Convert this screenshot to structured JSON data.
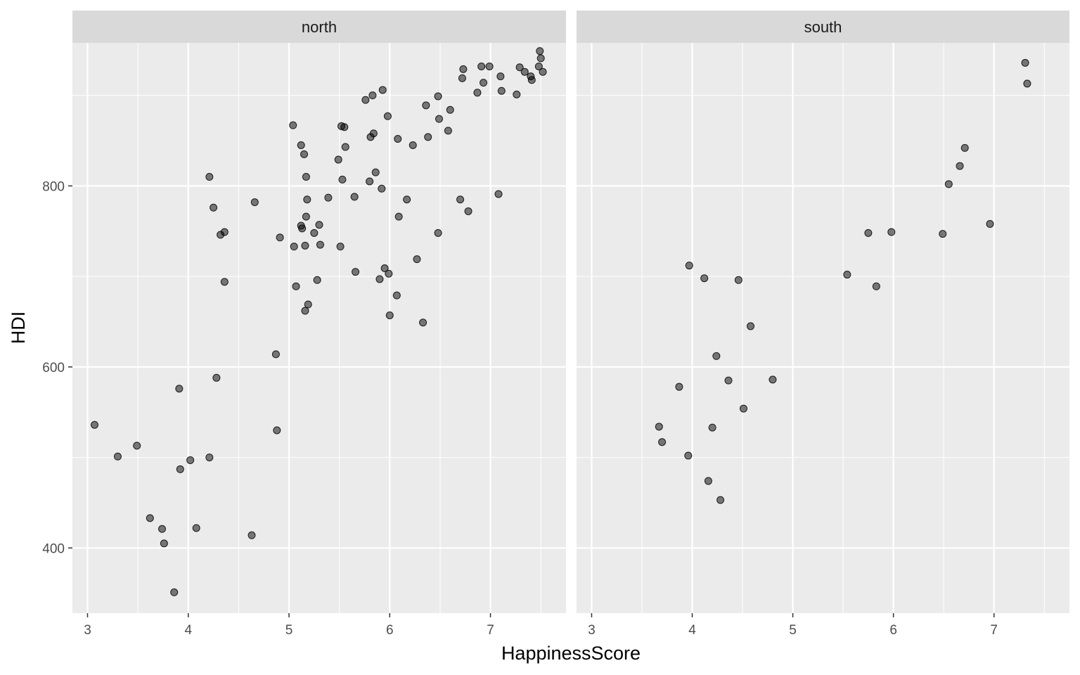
{
  "chart_data": {
    "type": "scatter",
    "xlabel": "HappinessScore",
    "ylabel": "HDI",
    "xlim": [
      2.85,
      7.75
    ],
    "ylim": [
      328,
      958
    ],
    "x_ticks": [
      3,
      4,
      5,
      6,
      7
    ],
    "y_ticks": [
      400,
      600,
      800
    ],
    "grid": true,
    "facet_by": "region",
    "colors": {
      "point_fill": "#000000",
      "point_opacity": 0.5,
      "panel_background": "#ebebeb",
      "strip_background": "#d9d9d9",
      "grid": "#ffffff"
    },
    "panels": [
      {
        "label": "north",
        "points": [
          [
            3.07,
            536
          ],
          [
            3.3,
            501
          ],
          [
            3.49,
            513
          ],
          [
            3.62,
            433
          ],
          [
            3.74,
            421
          ],
          [
            3.76,
            405
          ],
          [
            3.86,
            351
          ],
          [
            3.91,
            576
          ],
          [
            3.92,
            487
          ],
          [
            4.02,
            497
          ],
          [
            4.08,
            422
          ],
          [
            4.21,
            810
          ],
          [
            4.21,
            500
          ],
          [
            4.25,
            776
          ],
          [
            4.28,
            588
          ],
          [
            4.32,
            746
          ],
          [
            4.36,
            749
          ],
          [
            4.36,
            694
          ],
          [
            4.63,
            414
          ],
          [
            4.66,
            782
          ],
          [
            4.87,
            614
          ],
          [
            4.88,
            530
          ],
          [
            4.91,
            743
          ],
          [
            5.04,
            867
          ],
          [
            5.05,
            733
          ],
          [
            5.07,
            689
          ],
          [
            5.12,
            845
          ],
          [
            5.12,
            756
          ],
          [
            5.13,
            753
          ],
          [
            5.15,
            835
          ],
          [
            5.16,
            662
          ],
          [
            5.16,
            734
          ],
          [
            5.17,
            766
          ],
          [
            5.17,
            810
          ],
          [
            5.18,
            785
          ],
          [
            5.19,
            669
          ],
          [
            5.25,
            748
          ],
          [
            5.28,
            696
          ],
          [
            5.3,
            757
          ],
          [
            5.31,
            735
          ],
          [
            5.39,
            787
          ],
          [
            5.49,
            829
          ],
          [
            5.51,
            733
          ],
          [
            5.52,
            866
          ],
          [
            5.53,
            807
          ],
          [
            5.55,
            865
          ],
          [
            5.56,
            843
          ],
          [
            5.65,
            788
          ],
          [
            5.66,
            705
          ],
          [
            5.76,
            895
          ],
          [
            5.8,
            805
          ],
          [
            5.81,
            854
          ],
          [
            5.83,
            900
          ],
          [
            5.84,
            858
          ],
          [
            5.86,
            815
          ],
          [
            5.9,
            697
          ],
          [
            5.92,
            797
          ],
          [
            5.93,
            906
          ],
          [
            5.95,
            709
          ],
          [
            5.98,
            877
          ],
          [
            5.99,
            703
          ],
          [
            6.0,
            657
          ],
          [
            6.07,
            679
          ],
          [
            6.08,
            852
          ],
          [
            6.09,
            766
          ],
          [
            6.17,
            785
          ],
          [
            6.23,
            845
          ],
          [
            6.27,
            719
          ],
          [
            6.33,
            649
          ],
          [
            6.36,
            889
          ],
          [
            6.38,
            854
          ],
          [
            6.48,
            899
          ],
          [
            6.48,
            748
          ],
          [
            6.49,
            874
          ],
          [
            6.58,
            861
          ],
          [
            6.6,
            884
          ],
          [
            6.7,
            785
          ],
          [
            6.72,
            919
          ],
          [
            6.73,
            929
          ],
          [
            6.78,
            772
          ],
          [
            6.87,
            903
          ],
          [
            6.91,
            932
          ],
          [
            6.93,
            914
          ],
          [
            6.99,
            932
          ],
          [
            7.08,
            791
          ],
          [
            7.1,
            921
          ],
          [
            7.11,
            905
          ],
          [
            7.26,
            901
          ],
          [
            7.29,
            931
          ],
          [
            7.34,
            926
          ],
          [
            7.4,
            921
          ],
          [
            7.41,
            917
          ],
          [
            7.48,
            932
          ],
          [
            7.49,
            949
          ],
          [
            7.5,
            941
          ],
          [
            7.52,
            926
          ]
        ]
      },
      {
        "label": "south",
        "points": [
          [
            3.67,
            534
          ],
          [
            3.7,
            517
          ],
          [
            3.87,
            578
          ],
          [
            3.96,
            502
          ],
          [
            3.97,
            712
          ],
          [
            4.12,
            698
          ],
          [
            4.16,
            474
          ],
          [
            4.2,
            533
          ],
          [
            4.24,
            612
          ],
          [
            4.28,
            453
          ],
          [
            4.36,
            585
          ],
          [
            4.46,
            696
          ],
          [
            4.51,
            554
          ],
          [
            4.58,
            645
          ],
          [
            4.8,
            586
          ],
          [
            5.54,
            702
          ],
          [
            5.75,
            748
          ],
          [
            5.83,
            689
          ],
          [
            5.98,
            749
          ],
          [
            6.49,
            747
          ],
          [
            6.55,
            802
          ],
          [
            6.66,
            822
          ],
          [
            6.71,
            842
          ],
          [
            6.96,
            758
          ],
          [
            7.31,
            936
          ],
          [
            7.33,
            913
          ]
        ]
      }
    ]
  }
}
